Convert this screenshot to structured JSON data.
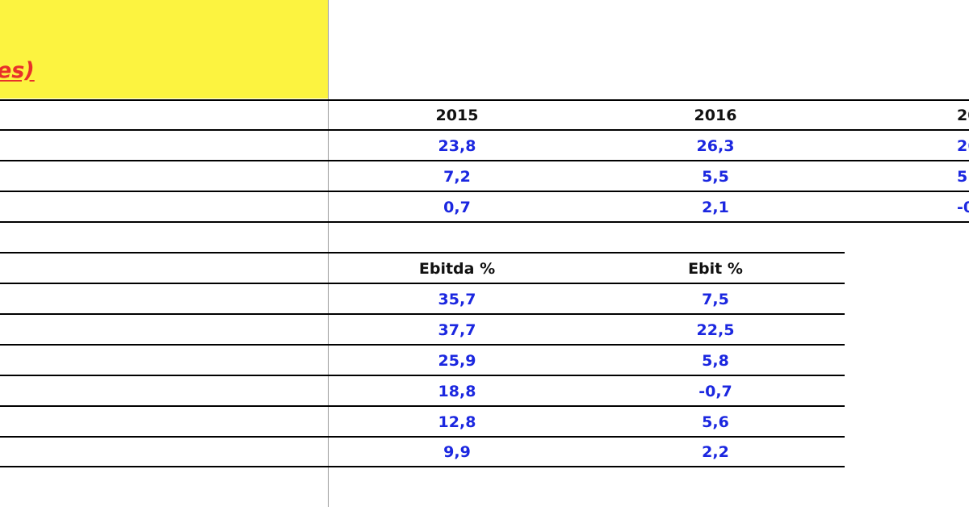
{
  "header": {
    "title_visible_fragment": "es)"
  },
  "table1": {
    "years": [
      "2015",
      "2016",
      "20"
    ],
    "rows": [
      [
        "23,8",
        "26,3",
        "26"
      ],
      [
        "7,2",
        "5,5",
        "5"
      ],
      [
        "0,7",
        "2,1",
        "-0"
      ]
    ]
  },
  "table2": {
    "headers": [
      "Ebitda %",
      "Ebit %"
    ],
    "rows": [
      [
        "35,7",
        "7,5"
      ],
      [
        "37,7",
        "22,5"
      ],
      [
        "25,9",
        "5,8"
      ],
      [
        "18,8",
        "-0,7"
      ],
      [
        "12,8",
        "5,6"
      ],
      [
        "9,9",
        "2,2"
      ]
    ]
  },
  "colors": {
    "title_fill": "#fcf340",
    "title_text": "#e8312a",
    "value_text": "#1b27e0",
    "header_text": "#111111"
  }
}
